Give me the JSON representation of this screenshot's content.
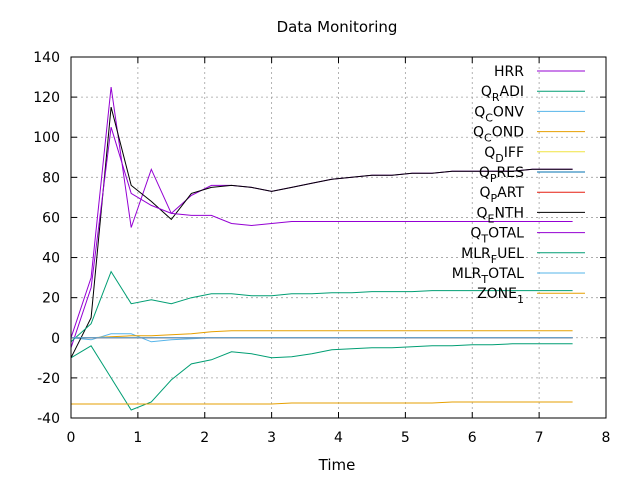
{
  "chart_data": {
    "type": "line",
    "title": "Data Monitoring",
    "xlabel": "Time",
    "ylabel": "",
    "xlim": [
      0,
      8
    ],
    "ylim": [
      -40,
      140
    ],
    "xticks": [
      0,
      1,
      2,
      3,
      4,
      5,
      6,
      7,
      8
    ],
    "yticks": [
      -40,
      -20,
      0,
      20,
      40,
      60,
      80,
      100,
      120,
      140
    ],
    "grid": true,
    "legend_position": "top-right",
    "series": [
      {
        "name": "HRR",
        "legend_main": "HRR",
        "color": "#9400d3",
        "x": [
          0,
          0.3,
          0.6,
          0.9,
          1.2,
          1.5,
          1.8,
          2.1,
          2.4,
          2.7,
          3.0,
          3.3,
          3.6,
          3.9,
          4.2,
          4.5,
          4.8,
          5.1,
          5.4,
          5.7,
          6.0,
          6.3,
          6.6,
          6.9,
          7.2,
          7.5
        ],
        "y": [
          0,
          30,
          125,
          55,
          84,
          62,
          71,
          76,
          76,
          75,
          73,
          75,
          77,
          79,
          80,
          81,
          81,
          82,
          82,
          83,
          83,
          83,
          83,
          84,
          84,
          84
        ]
      },
      {
        "name": "Q_RADI",
        "legend_main": "Q",
        "legend_sub": "R",
        "legend_rest": "ADI",
        "color": "#009e73",
        "x": [
          0,
          0.3,
          0.6,
          0.9,
          1.2,
          1.5,
          1.8,
          2.1,
          2.4,
          2.7,
          3.0,
          3.3,
          3.6,
          3.9,
          4.2,
          4.5,
          4.8,
          5.1,
          5.4,
          5.7,
          6.0,
          6.3,
          6.6,
          6.9,
          7.2,
          7.5
        ],
        "y": [
          -10,
          -4,
          -20,
          -36,
          -32,
          -21,
          -13,
          -11,
          -7,
          -8,
          -10,
          -9.5,
          -8,
          -6,
          -5.5,
          -5,
          -5,
          -4.5,
          -4,
          -4,
          -3.5,
          -3.5,
          -3,
          -3,
          -3,
          -3
        ]
      },
      {
        "name": "Q_CONV",
        "legend_main": "Q",
        "legend_sub": "C",
        "legend_rest": "ONV",
        "color": "#56b4e9",
        "x": [
          0,
          0.3,
          0.6,
          0.9,
          1.2,
          1.5,
          1.8,
          2.1,
          2.4,
          2.7,
          3.0,
          3.3,
          3.6,
          3.9,
          4.2,
          4.5,
          4.8,
          5.1,
          5.4,
          5.7,
          6.0,
          6.3,
          6.6,
          6.9,
          7.2,
          7.5
        ],
        "y": [
          0,
          -1,
          2,
          2,
          -2,
          -1,
          -0.5,
          0,
          0,
          0,
          0,
          0,
          0,
          0,
          0,
          0,
          0,
          0,
          0,
          0,
          0,
          0,
          0,
          0,
          0,
          0
        ]
      },
      {
        "name": "Q_COND",
        "legend_main": "Q",
        "legend_sub": "C",
        "legend_rest": "OND",
        "color": "#e69f00",
        "x": [
          0,
          0.3,
          0.6,
          0.9,
          1.2,
          1.5,
          1.8,
          2.1,
          2.4,
          2.7,
          3.0,
          3.3,
          3.6,
          3.9,
          4.2,
          4.5,
          4.8,
          5.1,
          5.4,
          5.7,
          6.0,
          6.3,
          6.6,
          6.9,
          7.2,
          7.5
        ],
        "y": [
          0,
          0,
          0.5,
          1,
          1,
          1.5,
          2,
          3,
          3.5,
          3.5,
          3.5,
          3.5,
          3.5,
          3.5,
          3.5,
          3.5,
          3.5,
          3.5,
          3.5,
          3.5,
          3.5,
          3.5,
          3.5,
          3.5,
          3.5,
          3.5
        ]
      },
      {
        "name": "Q_DIFF",
        "legend_main": "Q",
        "legend_sub": "D",
        "legend_rest": "IFF",
        "color": "#f0e442",
        "x": [
          0,
          0.3,
          0.6,
          0.9,
          1.2,
          1.5,
          1.8,
          2.1,
          2.4,
          2.7,
          3.0,
          3.3,
          3.6,
          3.9,
          4.2,
          4.5,
          4.8,
          5.1,
          5.4,
          5.7,
          6.0,
          6.3,
          6.6,
          6.9,
          7.2,
          7.5
        ],
        "y": [
          0,
          0,
          0,
          0,
          0,
          0,
          0,
          0,
          0,
          0,
          0,
          0,
          0,
          0,
          0,
          0,
          0,
          0,
          0,
          0,
          0,
          0,
          0,
          0,
          0,
          0
        ]
      },
      {
        "name": "Q_PRES",
        "legend_main": "Q",
        "legend_sub": "P",
        "legend_rest": "RES",
        "color": "#0072b2",
        "x": [
          0,
          0.3,
          0.6,
          0.9,
          1.2,
          1.5,
          1.8,
          2.1,
          2.4,
          2.7,
          3.0,
          3.3,
          3.6,
          3.9,
          4.2,
          4.5,
          4.8,
          5.1,
          5.4,
          5.7,
          6.0,
          6.3,
          6.6,
          6.9,
          7.2,
          7.5
        ],
        "y": [
          0,
          0,
          0,
          0,
          0,
          0,
          0,
          0,
          0,
          0,
          0,
          0,
          0,
          0,
          0,
          0,
          0,
          0,
          0,
          0,
          0,
          0,
          0,
          0,
          0,
          0
        ]
      },
      {
        "name": "Q_PART",
        "legend_main": "Q",
        "legend_sub": "P",
        "legend_rest": "ART",
        "color": "#e51e10",
        "x": [
          0,
          0.3,
          0.6,
          0.9,
          1.2,
          1.5,
          1.8,
          2.1,
          2.4,
          2.7,
          3.0,
          3.3,
          3.6,
          3.9,
          4.2,
          4.5,
          4.8,
          5.1,
          5.4,
          5.7,
          6.0,
          6.3,
          6.6,
          6.9,
          7.2,
          7.5
        ],
        "y": [
          0,
          0,
          0,
          0,
          0,
          0,
          0,
          0,
          0,
          0,
          0,
          0,
          0,
          0,
          0,
          0,
          0,
          0,
          0,
          0,
          0,
          0,
          0,
          0,
          0,
          0
        ]
      },
      {
        "name": "Q_ENTH",
        "legend_main": "Q",
        "legend_sub": "E",
        "legend_rest": "NTH",
        "color": "#000000",
        "x": [
          0,
          0.3,
          0.6,
          0.9,
          1.2,
          1.5,
          1.8,
          2.1,
          2.4,
          2.7,
          3.0,
          3.3,
          3.6,
          3.9,
          4.2,
          4.5,
          4.8,
          5.1,
          5.4,
          5.7,
          6.0,
          6.3,
          6.6,
          6.9,
          7.2,
          7.5
        ],
        "y": [
          -10,
          10,
          115,
          76,
          68,
          59,
          72,
          75,
          76,
          75,
          73,
          75,
          77,
          79,
          80,
          81,
          81,
          82,
          82,
          83,
          83,
          83,
          83,
          84,
          84,
          84
        ]
      },
      {
        "name": "Q_TOTAL",
        "legend_main": "Q",
        "legend_sub": "T",
        "legend_rest": "OTAL",
        "color": "#9400d3",
        "x": [
          0,
          0.3,
          0.6,
          0.9,
          1.2,
          1.5,
          1.8,
          2.1,
          2.4,
          2.7,
          3.0,
          3.3,
          3.6,
          3.9,
          4.2,
          4.5,
          4.8,
          5.1,
          5.4,
          5.7,
          6.0,
          6.3,
          6.6,
          6.9,
          7.2,
          7.5
        ],
        "y": [
          -5,
          25,
          105,
          72,
          66,
          62,
          61,
          61,
          57,
          56,
          57,
          58,
          58,
          58,
          58,
          58,
          58,
          58,
          58,
          58,
          58,
          58,
          58,
          58,
          58,
          58
        ]
      },
      {
        "name": "MLR_FUEL",
        "legend_main": "MLR",
        "legend_sub": "F",
        "legend_rest": "UEL",
        "color": "#009e73",
        "x": [
          0,
          0.3,
          0.6,
          0.9,
          1.2,
          1.5,
          1.8,
          2.1,
          2.4,
          2.7,
          3.0,
          3.3,
          3.6,
          3.9,
          4.2,
          4.5,
          4.8,
          5.1,
          5.4,
          5.7,
          6.0,
          6.3,
          6.6,
          6.9,
          7.2,
          7.5
        ],
        "y": [
          -2,
          7,
          33,
          17,
          19,
          17,
          20,
          22,
          22,
          21,
          21,
          22,
          22,
          22.5,
          22.5,
          23,
          23,
          23,
          23.5,
          23.5,
          23.5,
          23.5,
          23.5,
          23.5,
          23.5,
          23.5
        ]
      },
      {
        "name": "MLR_TOTAL",
        "legend_main": "MLR",
        "legend_sub": "T",
        "legend_rest": "OTAL",
        "color": "#56b4e9",
        "x": [
          0,
          0.3,
          0.6,
          0.9,
          1.2,
          1.5,
          1.8,
          2.1,
          2.4,
          2.7,
          3.0,
          3.3,
          3.6,
          3.9,
          4.2,
          4.5,
          4.8,
          5.1,
          5.4,
          5.7,
          6.0,
          6.3,
          6.6,
          6.9,
          7.2,
          7.5
        ],
        "y": [
          0,
          0,
          0,
          0,
          0,
          0,
          0,
          0,
          0,
          0,
          0,
          0,
          0,
          0,
          0,
          0,
          0,
          0,
          0,
          0,
          0,
          0,
          0,
          0,
          0,
          0
        ]
      },
      {
        "name": "ZONE_1",
        "legend_main": "ZONE",
        "legend_sub": "1",
        "legend_rest": "",
        "color": "#e69f00",
        "x": [
          0,
          0.3,
          0.6,
          0.9,
          1.2,
          1.5,
          1.8,
          2.1,
          2.4,
          2.7,
          3.0,
          3.3,
          3.6,
          3.9,
          4.2,
          4.5,
          4.8,
          5.1,
          5.4,
          5.7,
          6.0,
          6.3,
          6.6,
          6.9,
          7.2,
          7.5
        ],
        "y": [
          -33,
          -33,
          -33,
          -33,
          -33,
          -33,
          -33,
          -33,
          -33,
          -33,
          -33,
          -32.5,
          -32.5,
          -32.5,
          -32.5,
          -32.5,
          -32.5,
          -32.5,
          -32.5,
          -32,
          -32,
          -32,
          -32,
          -32,
          -32,
          -32
        ]
      }
    ]
  }
}
